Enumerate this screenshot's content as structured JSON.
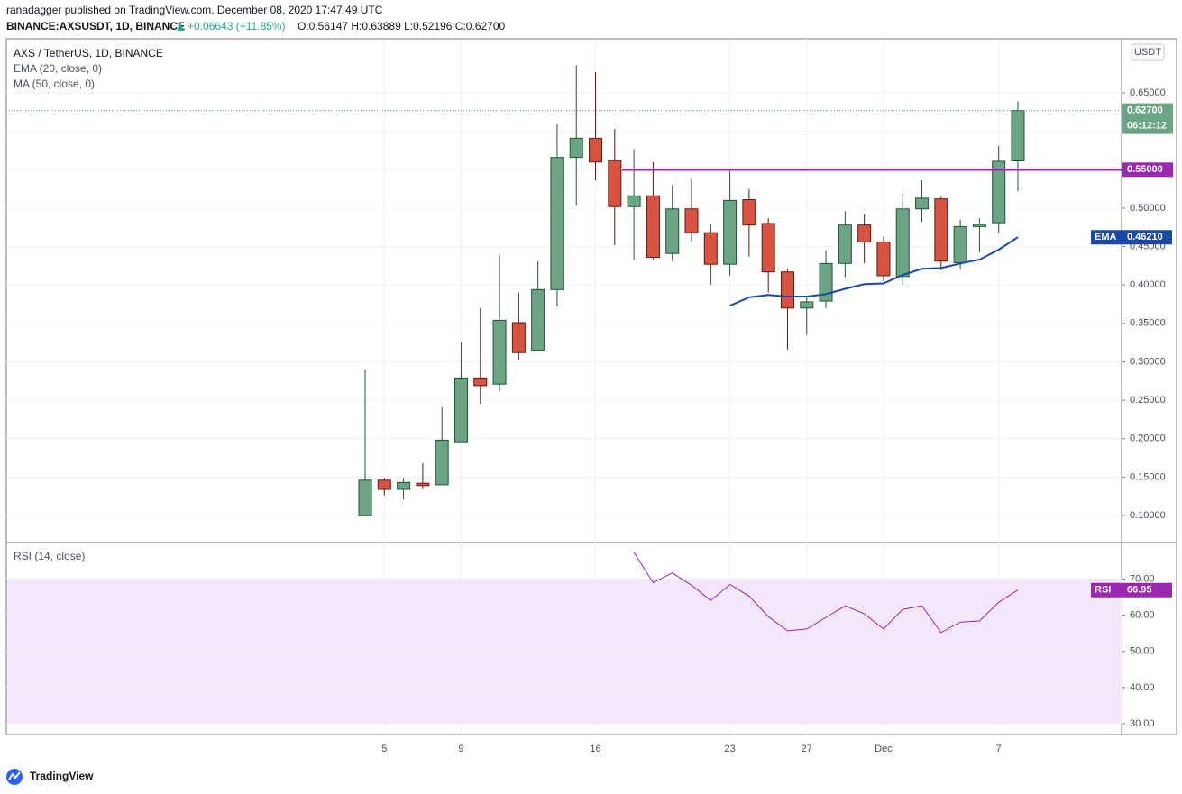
{
  "header": {
    "author_line": "ranadagger published on TradingView.com, December 08, 2020 17:47:49 UTC",
    "symbol": "BINANCE:AXSUSDT, 1D, BINANCE",
    "change": "+0.06643 (+11.85%)",
    "ohlc": "O:0.56147 H:0.63889 L:0.52196 C:0.62700"
  },
  "chart_data": [
    {
      "type": "candlestick",
      "title": "AXS / TetherUS, 1D, BINANCE",
      "currency": "USDT",
      "ma_label": "MA (50, close, 0)",
      "categories": [
        null,
        "5",
        null,
        null,
        null,
        "9",
        null,
        null,
        null,
        null,
        null,
        null,
        "16",
        null,
        null,
        null,
        null,
        null,
        null,
        "23",
        null,
        null,
        null,
        "27",
        null,
        null,
        null,
        "Dec",
        null,
        null,
        null,
        null,
        null,
        "7",
        null
      ],
      "open": [
        0.1,
        0.146,
        0.134,
        0.142,
        0.14,
        0.196,
        0.279,
        0.271,
        0.351,
        0.315,
        0.394,
        0.566,
        0.591,
        0.562,
        0.502,
        0.516,
        0.441,
        0.499,
        0.468,
        0.427,
        0.511,
        0.48,
        0.417,
        0.37,
        0.379,
        0.428,
        0.478,
        0.456,
        0.411,
        0.499,
        0.512,
        0.429,
        0.476,
        0.481,
        0.56147
      ],
      "high": [
        0.29,
        0.149,
        0.149,
        0.168,
        0.241,
        0.325,
        0.37,
        0.439,
        0.39,
        0.431,
        0.609,
        0.686,
        0.677,
        0.603,
        0.577,
        0.56,
        0.53,
        0.539,
        0.48,
        0.548,
        0.525,
        0.487,
        0.421,
        0.386,
        0.445,
        0.496,
        0.492,
        0.463,
        0.519,
        0.536,
        0.515,
        0.485,
        0.487,
        0.581,
        0.63889
      ],
      "low": [
        0.1,
        0.126,
        0.121,
        0.134,
        0.14,
        0.196,
        0.245,
        0.262,
        0.302,
        0.315,
        0.372,
        0.503,
        0.536,
        0.452,
        0.433,
        0.433,
        0.431,
        0.457,
        0.4,
        0.412,
        0.437,
        0.39,
        0.316,
        0.335,
        0.37,
        0.41,
        0.428,
        0.405,
        0.4,
        0.482,
        0.419,
        0.421,
        0.442,
        0.468,
        0.52196
      ],
      "close": [
        0.146,
        0.134,
        0.143,
        0.139,
        0.198,
        0.279,
        0.269,
        0.354,
        0.312,
        0.394,
        0.566,
        0.591,
        0.56,
        0.502,
        0.516,
        0.436,
        0.499,
        0.468,
        0.427,
        0.51,
        0.478,
        0.417,
        0.37,
        0.378,
        0.428,
        0.478,
        0.456,
        0.412,
        0.499,
        0.513,
        0.431,
        0.476,
        0.479,
        0.561,
        0.627
      ],
      "up_color": "#6ba583",
      "down_color": "#d75442",
      "series": [
        {
          "name": "EMA (20, close, 0)",
          "tag": "EMA",
          "color": "#1848a8",
          "last_label": "0.46210",
          "values": [
            null,
            null,
            null,
            null,
            null,
            null,
            null,
            null,
            null,
            null,
            null,
            null,
            null,
            null,
            null,
            null,
            null,
            null,
            null,
            0.373,
            0.384,
            0.387,
            0.385,
            0.385,
            0.388,
            0.395,
            0.401,
            0.402,
            0.413,
            0.421,
            0.422,
            0.428,
            0.433,
            0.446,
            0.4621
          ]
        }
      ],
      "hline": {
        "value": 0.55,
        "label": "0.55000",
        "color": "#9c27b0"
      },
      "last_price_label": "0.62700",
      "countdown": "06:12:12",
      "ylim": [
        0.0648,
        0.7204
      ],
      "yticks": [
        {
          "value": 0.1,
          "label": "0.10000"
        },
        {
          "value": 0.15,
          "label": "0.15000"
        },
        {
          "value": 0.2,
          "label": "0.20000"
        },
        {
          "value": 0.25,
          "label": "0.25000"
        },
        {
          "value": 0.3,
          "label": "0.30000"
        },
        {
          "value": 0.35,
          "label": "0.35000"
        },
        {
          "value": 0.4,
          "label": "0.40000"
        },
        {
          "value": 0.45,
          "label": "0.45000"
        },
        {
          "value": 0.5,
          "label": "0.50000"
        },
        {
          "value": 0.55,
          "label": "0.55000"
        },
        {
          "value": 0.6,
          "label": "0.60000"
        },
        {
          "value": 0.65,
          "label": "0.65000"
        }
      ],
      "grid": true
    },
    {
      "type": "line",
      "title": "RSI (14, close)",
      "series": [
        {
          "name": "RSI",
          "color": "#9c27b0",
          "values": [
            null,
            null,
            null,
            null,
            null,
            null,
            null,
            null,
            null,
            null,
            null,
            null,
            null,
            null,
            77.4,
            69.0,
            71.7,
            68.3,
            64.1,
            68.5,
            65.3,
            59.6,
            55.7,
            56.2,
            59.4,
            62.6,
            60.4,
            56.2,
            61.6,
            62.6,
            55.2,
            58.1,
            58.4,
            63.6,
            66.95
          ]
        }
      ],
      "band": [
        30,
        70
      ],
      "band_color": "#f4e6fb",
      "ylim": [
        27.0,
        80.1
      ],
      "yticks": [
        {
          "value": 30,
          "label": "30.00"
        },
        {
          "value": 40,
          "label": "40.00"
        },
        {
          "value": 50,
          "label": "50.00"
        },
        {
          "value": 60,
          "label": "60.00"
        },
        {
          "value": 70,
          "label": "70.00"
        }
      ],
      "grid": true
    }
  ],
  "footer": {
    "brand": "TradingView"
  }
}
